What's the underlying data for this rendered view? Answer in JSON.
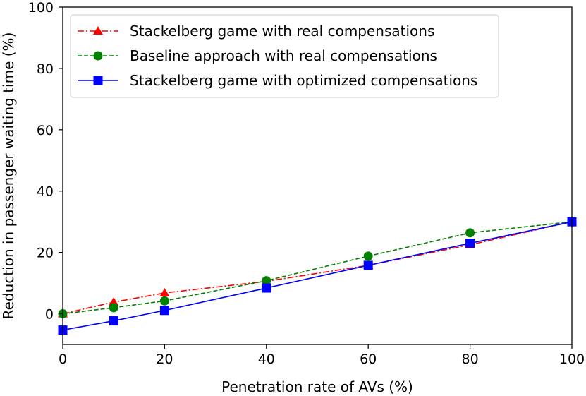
{
  "chart_data": {
    "type": "line",
    "xlabel": "Penetration rate of AVs (%)",
    "ylabel": "Reduction in passenger waiting time (%)",
    "xlim": [
      0,
      100
    ],
    "ylim": [
      -10,
      100
    ],
    "xticks": [
      0,
      20,
      40,
      60,
      80,
      100
    ],
    "yticks": [
      0,
      20,
      40,
      60,
      80,
      100
    ],
    "grid": false,
    "legend_position": "top-left",
    "x": [
      0,
      10,
      20,
      40,
      60,
      80,
      100
    ],
    "series": [
      {
        "name": "Stackelberg game with real compensations",
        "values": [
          0,
          3.8,
          6.8,
          10.6,
          15.8,
          22.5,
          30.0
        ],
        "color": "#ff0000",
        "linestyle": "dashdot",
        "marker": "triangle"
      },
      {
        "name": "Baseline approach with real compensations",
        "values": [
          0,
          2.0,
          4.2,
          10.8,
          18.8,
          26.4,
          30.0
        ],
        "color": "#008000",
        "linestyle": "dashed",
        "marker": "circle"
      },
      {
        "name": "Stackelberg game with optimized compensations",
        "values": [
          -5.3,
          -2.3,
          1.1,
          8.4,
          15.8,
          23.0,
          30.0
        ],
        "color": "#0000ff",
        "linestyle": "solid",
        "marker": "square"
      }
    ]
  }
}
